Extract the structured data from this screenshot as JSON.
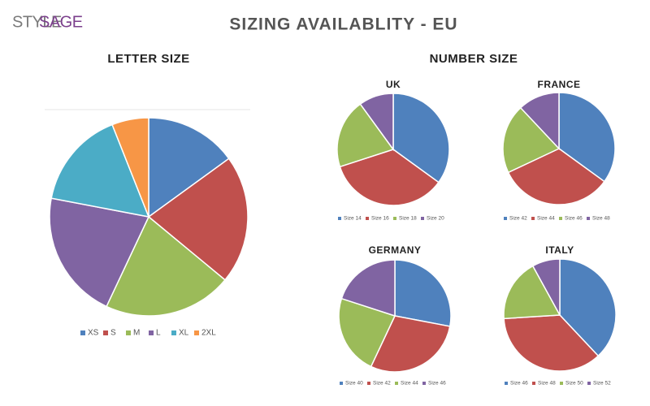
{
  "header": {
    "logo_style": "STYLE",
    "logo_sage": "SAGE",
    "title": "SIZING AVAILABLITY - EU",
    "number_heading": "NUMBER SIZE"
  },
  "chart_data": [
    {
      "type": "pie",
      "title": "LETTER SIZE",
      "categories": [
        "XS",
        "S",
        "M",
        "L",
        "XL",
        "2XL"
      ],
      "values": [
        15,
        21,
        21,
        21,
        16,
        6
      ],
      "colors": [
        "#4f81bd",
        "#c0504d",
        "#9bbb59",
        "#8064a2",
        "#4bacc6",
        "#f79646"
      ],
      "legend": "bottom"
    },
    {
      "type": "pie",
      "title": "UK",
      "categories": [
        "Size 14",
        "Size 16",
        "Size 18",
        "Size 20"
      ],
      "values": [
        35,
        35,
        20,
        10
      ],
      "colors": [
        "#4f81bd",
        "#c0504d",
        "#9bbb59",
        "#8064a2"
      ],
      "legend": "bottom"
    },
    {
      "type": "pie",
      "title": "FRANCE",
      "categories": [
        "Size 42",
        "Size 44",
        "Size 46",
        "Size 48"
      ],
      "values": [
        35,
        33,
        20,
        12
      ],
      "colors": [
        "#4f81bd",
        "#c0504d",
        "#9bbb59",
        "#8064a2"
      ],
      "legend": "bottom"
    },
    {
      "type": "pie",
      "title": "GERMANY",
      "categories": [
        "Size 40",
        "Size 42",
        "Size 44",
        "Size 46"
      ],
      "values": [
        28,
        29,
        23,
        20
      ],
      "colors": [
        "#4f81bd",
        "#c0504d",
        "#9bbb59",
        "#8064a2"
      ],
      "legend": "bottom"
    },
    {
      "type": "pie",
      "title": "ITALY",
      "categories": [
        "Size 46",
        "Size 48",
        "Size 50",
        "Size 52"
      ],
      "values": [
        38,
        36,
        18,
        8
      ],
      "colors": [
        "#4f81bd",
        "#c0504d",
        "#9bbb59",
        "#8064a2"
      ],
      "legend": "bottom"
    }
  ]
}
